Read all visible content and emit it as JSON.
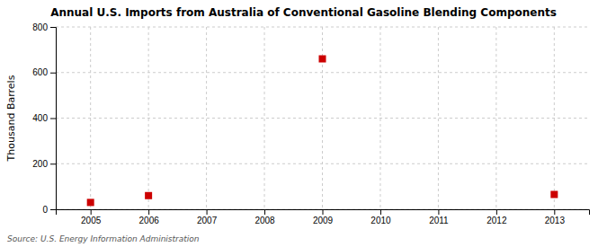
{
  "chart_data": {
    "type": "scatter",
    "title": "Annual U.S. Imports from Australia of Conventional Gasoline Blending Components",
    "ylabel": "Thousand Barrels",
    "source": "Source: U.S. Energy Information Administration",
    "x": [
      2005,
      2006,
      2009,
      2013
    ],
    "values": [
      30,
      60,
      660,
      65
    ],
    "color": "#cc0000",
    "marker": "square",
    "xlim": [
      2004.4,
      2013.6
    ],
    "xticks": [
      2005,
      2006,
      2007,
      2008,
      2009,
      2010,
      2011,
      2012,
      2013
    ],
    "ylim": [
      0,
      800
    ],
    "yticks": [
      0,
      200,
      400,
      600,
      800
    ],
    "grid": true
  }
}
